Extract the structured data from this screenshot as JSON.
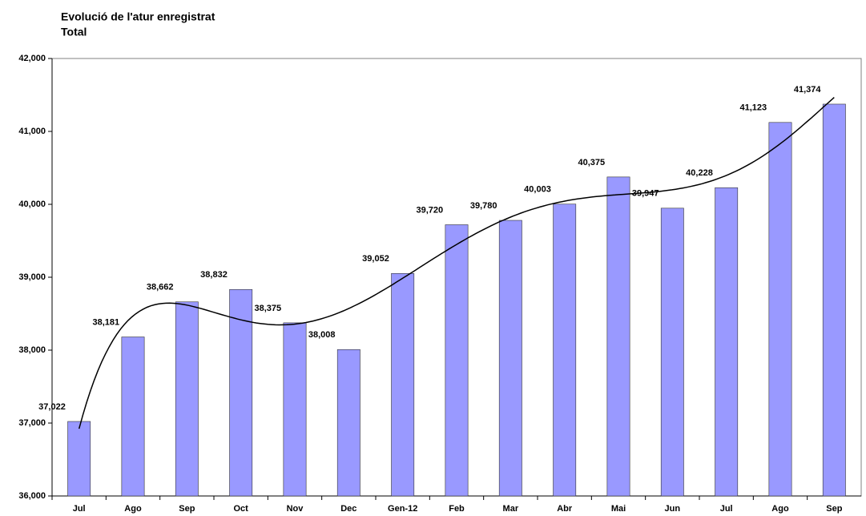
{
  "chart_data": {
    "type": "bar",
    "title": "Evolució de l'atur enregistrat",
    "subtitle": "Total",
    "categories": [
      "Jul",
      "Ago",
      "Sep",
      "Oct",
      "Nov",
      "Dec",
      "Gen-12",
      "Feb",
      "Mar",
      "Abr",
      "Mai",
      "Jun",
      "Jul",
      "Ago",
      "Sep"
    ],
    "values": [
      37022,
      38181,
      38662,
      38832,
      38375,
      38008,
      39052,
      39720,
      39780,
      40003,
      40375,
      39947,
      40228,
      41123,
      41374
    ],
    "value_labels": [
      "37,022",
      "38,181",
      "38,662",
      "38,832",
      "38,375",
      "38,008",
      "39,052",
      "39,720",
      "39,780",
      "40,003",
      "40,375",
      "39,947",
      "40,228",
      "41,123",
      "41,374"
    ],
    "color": "#9999ff",
    "ylim": [
      36000,
      42000
    ],
    "yticks": [
      {
        "value": 36000,
        "label": "36,000"
      },
      {
        "value": 37000,
        "label": "37,000"
      },
      {
        "value": 38000,
        "label": "38,000"
      },
      {
        "value": 39000,
        "label": "39,000"
      },
      {
        "value": 40000,
        "label": "40,000"
      },
      {
        "value": 41000,
        "label": "41,000"
      },
      {
        "value": 42000,
        "label": "42,000"
      }
    ],
    "trendline": "polynomial"
  }
}
